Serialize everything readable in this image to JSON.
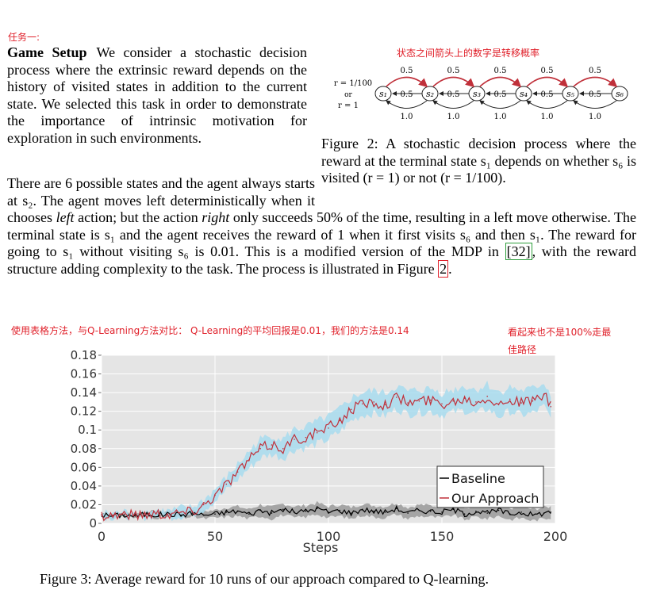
{
  "annotations": {
    "task": "任务一:",
    "fig2_note": "状态之间箭头上的数字是转移概率",
    "chart_note": "使用表格方法，与Q-Learning方法对比： Q-Learning的平均回报是0.01，我们的方法是0.14",
    "chart_note_2_line1": "看起来也不是100%走最",
    "chart_note_2_line2": "佳路径"
  },
  "paragraph1": {
    "title": "Game Setup",
    "text": "We consider a stochastic decision process where the extrinsic reward depends on the history of visited states in addition to the current state. We selected this task in order to demonstrate the importance of intrinsic motivation for exploration in such environments."
  },
  "paragraph2": {
    "part_a": "There are 6 possible states and the agent always starts at s₂. The agent moves left deterministically when it chooses",
    "left_word": "left",
    "part_b": "action; but the action",
    "right_word": "right",
    "part_c": "only succeeds 50% of the time, resulting in a left move otherwise. The terminal state is s₁ and the agent receives the reward of 1 when it first visits s₆ and then s₁. The reward for going to s₁ without visiting s₆ is 0.01. This is a modified version of the MDP in",
    "ref": "[32]",
    "part_d": ", with the reward structure adding complexity to the task. The process is illustrated in Figure",
    "fig_ref": "2",
    "part_e": "."
  },
  "figure2": {
    "caption": "Figure 2: A stochastic decision process where the reward at the terminal state s₁ depends on whether s₆ is visited (r = 1) or not (r = 1/100).",
    "reward_top": "r = 1/100",
    "reward_or": "or",
    "reward_bottom": "r = 1",
    "states": [
      "s1",
      "s2",
      "s3",
      "s4",
      "s5",
      "s6"
    ],
    "top_probs": [
      "0.5",
      "0.5",
      "0.5",
      "0.5",
      "0.5"
    ],
    "mid_probs": [
      "0.5",
      "0.5",
      "0.5",
      "0.5",
      "0.5"
    ],
    "bottom_probs": [
      "1.0",
      "1.0",
      "1.0",
      "1.0",
      "1.0"
    ],
    "arrow_color": "#c0303a"
  },
  "figure3": {
    "caption": "Figure 3: Average reward for 10 runs of our approach compared to Q-learning."
  },
  "chart_data": {
    "type": "line",
    "xlabel": "Steps",
    "ylabel": "",
    "xlim": [
      0,
      200
    ],
    "ylim": [
      0,
      0.18
    ],
    "xticks": [
      0,
      50,
      100,
      150,
      200
    ],
    "yticks": [
      0,
      0.02,
      0.04,
      0.06,
      0.08,
      0.1,
      0.12,
      0.14,
      0.16,
      0.18
    ],
    "ytick_labels": [
      "0",
      "0.02",
      "0.04",
      "0.06",
      "0.08",
      "0.1",
      "0.12",
      "0.14",
      "0.16",
      "0.18"
    ],
    "grid": true,
    "legend_position": "bottom-right",
    "series": [
      {
        "name": "Baseline",
        "color": "#000000",
        "band_color": "#9a9a9a",
        "x": [
          0,
          5,
          10,
          15,
          20,
          25,
          30,
          35,
          40,
          45,
          50,
          55,
          60,
          65,
          70,
          75,
          80,
          85,
          90,
          95,
          100,
          105,
          110,
          115,
          120,
          125,
          130,
          135,
          140,
          145,
          150,
          155,
          160,
          165,
          170,
          175,
          180,
          185,
          190,
          195,
          198
        ],
        "values": [
          0.009,
          0.008,
          0.009,
          0.008,
          0.01,
          0.009,
          0.01,
          0.009,
          0.011,
          0.009,
          0.01,
          0.012,
          0.013,
          0.01,
          0.014,
          0.011,
          0.015,
          0.012,
          0.013,
          0.016,
          0.012,
          0.014,
          0.011,
          0.015,
          0.013,
          0.012,
          0.016,
          0.011,
          0.014,
          0.013,
          0.012,
          0.015,
          0.01,
          0.013,
          0.011,
          0.014,
          0.01,
          0.012,
          0.009,
          0.011,
          0.012
        ],
        "band": [
          0.002,
          0.002,
          0.002,
          0.002,
          0.003,
          0.003,
          0.003,
          0.003,
          0.004,
          0.004,
          0.004,
          0.005,
          0.005,
          0.005,
          0.006,
          0.006,
          0.006,
          0.006,
          0.006,
          0.006,
          0.006,
          0.006,
          0.006,
          0.006,
          0.006,
          0.006,
          0.006,
          0.006,
          0.006,
          0.006,
          0.006,
          0.006,
          0.006,
          0.006,
          0.006,
          0.006,
          0.006,
          0.006,
          0.006,
          0.006,
          0.006
        ]
      },
      {
        "name": "Our Approach",
        "color": "#c0303a",
        "band_color": "#a8dcef",
        "x": [
          0,
          5,
          10,
          15,
          20,
          25,
          30,
          35,
          40,
          45,
          50,
          55,
          60,
          65,
          70,
          75,
          80,
          85,
          90,
          95,
          100,
          105,
          110,
          115,
          120,
          125,
          130,
          135,
          140,
          145,
          150,
          155,
          160,
          165,
          170,
          175,
          180,
          185,
          190,
          195,
          198
        ],
        "values": [
          0.009,
          0.009,
          0.01,
          0.009,
          0.01,
          0.011,
          0.01,
          0.012,
          0.013,
          0.02,
          0.03,
          0.042,
          0.055,
          0.068,
          0.08,
          0.084,
          0.08,
          0.09,
          0.092,
          0.097,
          0.102,
          0.11,
          0.122,
          0.128,
          0.13,
          0.127,
          0.135,
          0.129,
          0.131,
          0.132,
          0.128,
          0.131,
          0.134,
          0.13,
          0.136,
          0.127,
          0.133,
          0.129,
          0.131,
          0.138,
          0.125
        ],
        "band": [
          0.002,
          0.002,
          0.002,
          0.002,
          0.003,
          0.003,
          0.003,
          0.004,
          0.004,
          0.005,
          0.006,
          0.007,
          0.008,
          0.009,
          0.01,
          0.01,
          0.01,
          0.011,
          0.011,
          0.012,
          0.012,
          0.012,
          0.012,
          0.012,
          0.012,
          0.012,
          0.012,
          0.012,
          0.012,
          0.012,
          0.012,
          0.012,
          0.013,
          0.013,
          0.013,
          0.013,
          0.013,
          0.013,
          0.013,
          0.013,
          0.013
        ]
      }
    ]
  }
}
